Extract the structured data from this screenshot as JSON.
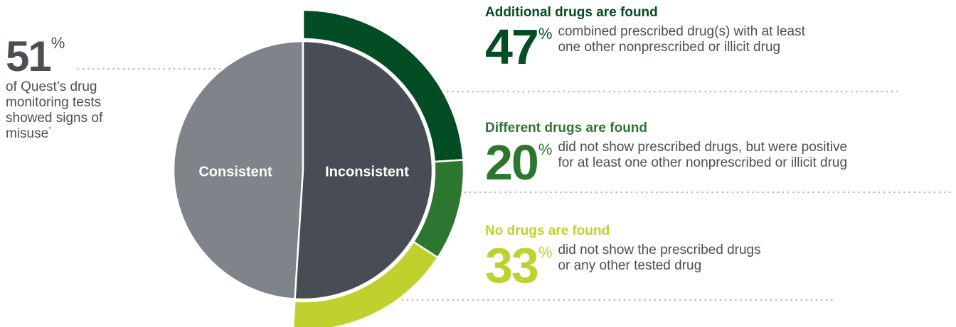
{
  "colors": {
    "consistent": "#7f838a",
    "inconsistent": "#484c55",
    "additional": "#024d23",
    "different": "#2c7630",
    "none": "#bfd12d",
    "text": "#4a4e55",
    "dots": "#b9bcc0"
  },
  "left_stat": {
    "value": "51",
    "percent_sign": "%",
    "description": "of Quest’s drug monitoring tests showed signs of misuse",
    "footnote_mark": "*"
  },
  "chart_data": {
    "type": "pie",
    "inner": {
      "labels": [
        "Consistent",
        "Inconsistent"
      ],
      "values": [
        49,
        51
      ]
    },
    "outer": {
      "labels": [
        "Additional drugs are found",
        "Different drugs are found",
        "No drugs are found"
      ],
      "values": [
        47,
        20,
        33
      ]
    }
  },
  "blocks": [
    {
      "title": "Additional drugs are found",
      "value": "47",
      "percent_sign": "%",
      "description_line1": "combined prescribed drug(s) with at least",
      "description_line2": "one other nonprescribed or illicit drug"
    },
    {
      "title": "Different drugs are found",
      "value": "20",
      "percent_sign": "%",
      "description_line1": "did not show prescribed drugs, but were positive",
      "description_line2": "for at least one other nonprescribed or illicit drug"
    },
    {
      "title": "No drugs are found",
      "value": "33",
      "percent_sign": "%",
      "description_line1": "did not show the prescribed drugs",
      "description_line2": "or any other tested drug"
    }
  ]
}
